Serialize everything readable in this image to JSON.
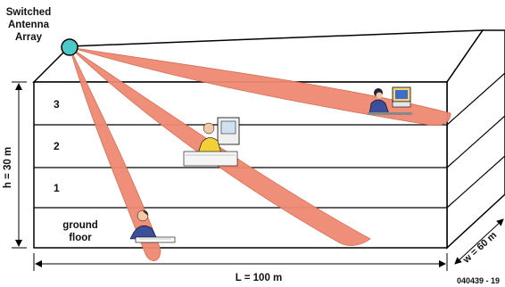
{
  "antenna": {
    "label_line1": "Switched",
    "label_line2": "Antenna",
    "label_line3": "Array",
    "color": "#4ec9c9"
  },
  "floors": [
    {
      "label": "3"
    },
    {
      "label": "2"
    },
    {
      "label": "1"
    },
    {
      "label_line1": "ground",
      "label_line2": "floor"
    }
  ],
  "dimensions": {
    "height": "h = 30 m",
    "length": "L = 100 m",
    "width": "w = 60 m"
  },
  "figure_code": "040439 - 19",
  "colors": {
    "beam": "#f08a72",
    "beam_stroke": "#c4563e",
    "building_stroke": "#000000"
  },
  "beam_targets": [
    "3",
    "2",
    "ground floor"
  ]
}
